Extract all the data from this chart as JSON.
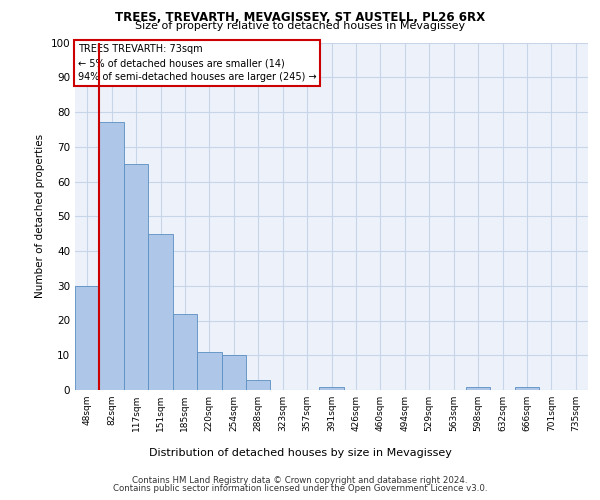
{
  "title1": "TREES, TREVARTH, MEVAGISSEY, ST AUSTELL, PL26 6RX",
  "title2": "Size of property relative to detached houses in Mevagissey",
  "xlabel": "Distribution of detached houses by size in Mevagissey",
  "ylabel": "Number of detached properties",
  "categories": [
    "48sqm",
    "82sqm",
    "117sqm",
    "151sqm",
    "185sqm",
    "220sqm",
    "254sqm",
    "288sqm",
    "323sqm",
    "357sqm",
    "391sqm",
    "426sqm",
    "460sqm",
    "494sqm",
    "529sqm",
    "563sqm",
    "598sqm",
    "632sqm",
    "666sqm",
    "701sqm",
    "735sqm"
  ],
  "values": [
    30,
    77,
    65,
    45,
    22,
    11,
    10,
    3,
    0,
    0,
    1,
    0,
    0,
    0,
    0,
    0,
    1,
    0,
    1,
    0,
    0
  ],
  "bar_color": "#aec6e8",
  "bar_edge_color": "#5a8fc2",
  "grid_color": "#c8d4e8",
  "background_color": "#edf2fa",
  "annotation_text": "TREES TREVARTH: 73sqm\n← 5% of detached houses are smaller (14)\n94% of semi-detached houses are larger (245) →",
  "annotation_box_color": "#ffffff",
  "annotation_box_edge": "#cc0000",
  "vline_color": "#cc0000",
  "ylim": [
    0,
    100
  ],
  "yticks": [
    0,
    10,
    20,
    30,
    40,
    50,
    60,
    70,
    80,
    90,
    100
  ],
  "footer1": "Contains HM Land Registry data © Crown copyright and database right 2024.",
  "footer2": "Contains public sector information licensed under the Open Government Licence v3.0."
}
